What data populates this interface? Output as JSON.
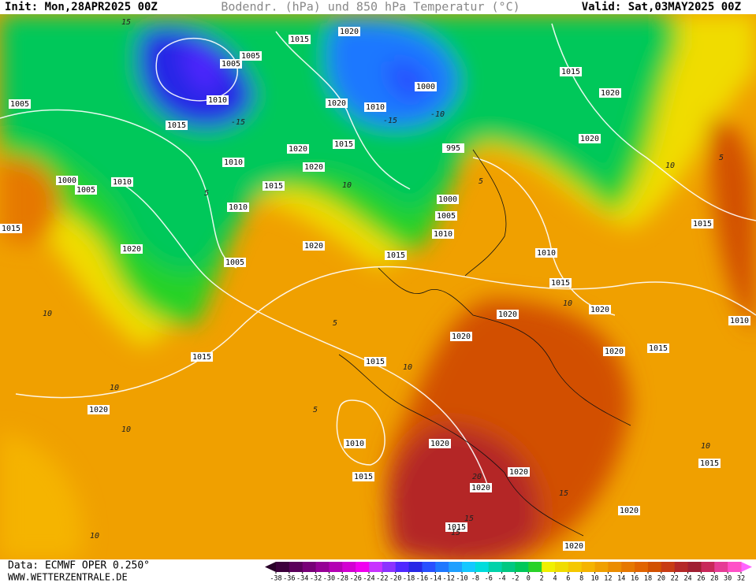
{
  "header": {
    "init": "Init: Mon,28APR2025 00Z",
    "title": "Bodendr. (hPa) und 850 hPa Temperatur (°C)",
    "valid": "Valid: Sat,03MAY2025 00Z"
  },
  "footer": {
    "source": "Data: ECMWF OPER 0.250°",
    "site": "WWW.WETTERZENTRALE.DE"
  },
  "isobar_labels": [
    "1015",
    "1020",
    "1005",
    "1005",
    "1010",
    "1005",
    "1015",
    "1020",
    "1010",
    "1000",
    "1015",
    "1020",
    "1020",
    "995",
    "1015",
    "1020",
    "1020",
    "1010",
    "1015",
    "1000",
    "1005",
    "1010",
    "1000",
    "1005",
    "1010",
    "1015",
    "1020",
    "1005",
    "1020",
    "1015",
    "1010",
    "1015",
    "1020",
    "1020",
    "1020",
    "1020",
    "1015",
    "1010",
    "1015",
    "1015",
    "1020",
    "1010",
    "1015",
    "1020",
    "1020",
    "1020",
    "1015",
    "1020",
    "1015",
    "1020",
    "1015",
    "1010"
  ],
  "temperature_labels": [
    "15",
    "-15",
    "-10",
    "-15",
    "10",
    "5",
    "5",
    "10",
    "5",
    "10",
    "10",
    "10",
    "10",
    "15",
    "10",
    "15",
    "20",
    "15",
    "10",
    "5",
    "5",
    "10"
  ],
  "legend": {
    "ticks": [
      -38,
      -36,
      -34,
      -32,
      -30,
      -28,
      -26,
      -24,
      -22,
      -20,
      -18,
      -16,
      -14,
      -12,
      -10,
      -8,
      -6,
      -4,
      -2,
      0,
      2,
      4,
      6,
      8,
      10,
      12,
      14,
      16,
      18,
      20,
      22,
      24,
      26,
      28,
      30,
      32
    ],
    "colors": [
      "#3c003c",
      "#5a005a",
      "#780078",
      "#960096",
      "#b400b4",
      "#d200d2",
      "#f000f0",
      "#c832ff",
      "#8c32ff",
      "#5028ff",
      "#2828e6",
      "#2850ff",
      "#1e78ff",
      "#1ea0ff",
      "#14c8ff",
      "#00dcdc",
      "#00d2aa",
      "#00c882",
      "#00c85a",
      "#28d228",
      "#f0f000",
      "#f0dc00",
      "#f5c800",
      "#f5b400",
      "#f0a000",
      "#eb8c00",
      "#e67800",
      "#e16400",
      "#d25000",
      "#c83c14",
      "#b42828",
      "#a01e32",
      "#c8285a",
      "#e63c96",
      "#ff50c8"
    ],
    "low_color": "#280028",
    "high_color": "#ff64ff"
  }
}
